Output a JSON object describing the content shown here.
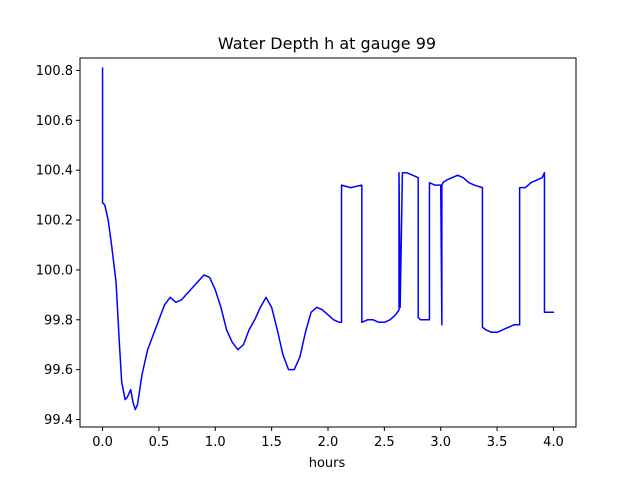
{
  "chart_data": {
    "type": "line",
    "title": "Water Depth h at gauge 99",
    "xlabel": "hours",
    "ylabel": "",
    "xlim": [
      -0.2,
      4.2
    ],
    "ylim": [
      99.37,
      100.85
    ],
    "x_ticks": [
      "0.0",
      "0.5",
      "1.0",
      "1.5",
      "2.0",
      "2.5",
      "3.0",
      "3.5",
      "4.0"
    ],
    "y_ticks": [
      "99.4",
      "99.6",
      "99.8",
      "100.0",
      "100.2",
      "100.4",
      "100.6",
      "100.8"
    ],
    "x_tick_values": [
      0.0,
      0.5,
      1.0,
      1.5,
      2.0,
      2.5,
      3.0,
      3.5,
      4.0
    ],
    "y_tick_values": [
      99.4,
      99.6,
      99.8,
      100.0,
      100.2,
      100.4,
      100.6,
      100.8
    ],
    "grid": false,
    "series": [
      {
        "color": "#0000ff",
        "x": [
          0.0,
          0.0,
          0.001,
          0.02,
          0.05,
          0.08,
          0.12,
          0.15,
          0.17,
          0.2,
          0.22,
          0.25,
          0.27,
          0.29,
          0.31,
          0.35,
          0.4,
          0.45,
          0.5,
          0.55,
          0.6,
          0.65,
          0.7,
          0.8,
          0.9,
          0.95,
          1.0,
          1.05,
          1.1,
          1.15,
          1.2,
          1.25,
          1.3,
          1.35,
          1.4,
          1.45,
          1.5,
          1.55,
          1.6,
          1.65,
          1.7,
          1.75,
          1.8,
          1.85,
          1.9,
          1.95,
          2.0,
          2.05,
          2.1,
          2.12,
          2.12,
          2.2,
          2.3,
          2.3,
          2.35,
          2.4,
          2.45,
          2.5,
          2.55,
          2.6,
          2.63,
          2.63,
          2.64,
          2.64,
          2.66,
          2.66,
          2.7,
          2.75,
          2.8,
          2.8,
          2.82,
          2.85,
          2.9,
          2.9,
          2.95,
          3.0,
          3.01,
          3.01,
          3.02,
          3.05,
          3.1,
          3.15,
          3.2,
          3.25,
          3.3,
          3.37,
          3.37,
          3.4,
          3.45,
          3.5,
          3.55,
          3.6,
          3.65,
          3.7,
          3.7,
          3.75,
          3.8,
          3.85,
          3.9,
          3.92,
          3.92,
          3.95,
          4.0
        ],
        "y": [
          100.81,
          100.27,
          100.27,
          100.26,
          100.2,
          100.1,
          99.95,
          99.7,
          99.55,
          99.48,
          99.49,
          99.52,
          99.47,
          99.44,
          99.46,
          99.58,
          99.68,
          99.74,
          99.8,
          99.86,
          99.89,
          99.87,
          99.88,
          99.93,
          99.98,
          99.97,
          99.92,
          99.85,
          99.76,
          99.71,
          99.68,
          99.7,
          99.76,
          99.8,
          99.85,
          99.89,
          99.85,
          99.76,
          99.66,
          99.6,
          99.6,
          99.65,
          99.75,
          99.83,
          99.85,
          99.84,
          99.82,
          99.8,
          99.79,
          99.79,
          100.34,
          100.33,
          100.34,
          99.79,
          99.8,
          99.8,
          99.79,
          99.79,
          99.8,
          99.82,
          99.84,
          100.39,
          99.85,
          99.85,
          100.39,
          100.39,
          100.39,
          100.38,
          100.37,
          99.81,
          99.8,
          99.8,
          99.8,
          100.35,
          100.34,
          100.34,
          99.78,
          100.34,
          100.35,
          100.36,
          100.37,
          100.38,
          100.37,
          100.35,
          100.34,
          100.33,
          99.77,
          99.76,
          99.75,
          99.75,
          99.76,
          99.77,
          99.78,
          99.78,
          100.33,
          100.33,
          100.35,
          100.36,
          100.37,
          100.39,
          99.83,
          99.83,
          99.83
        ]
      }
    ]
  }
}
